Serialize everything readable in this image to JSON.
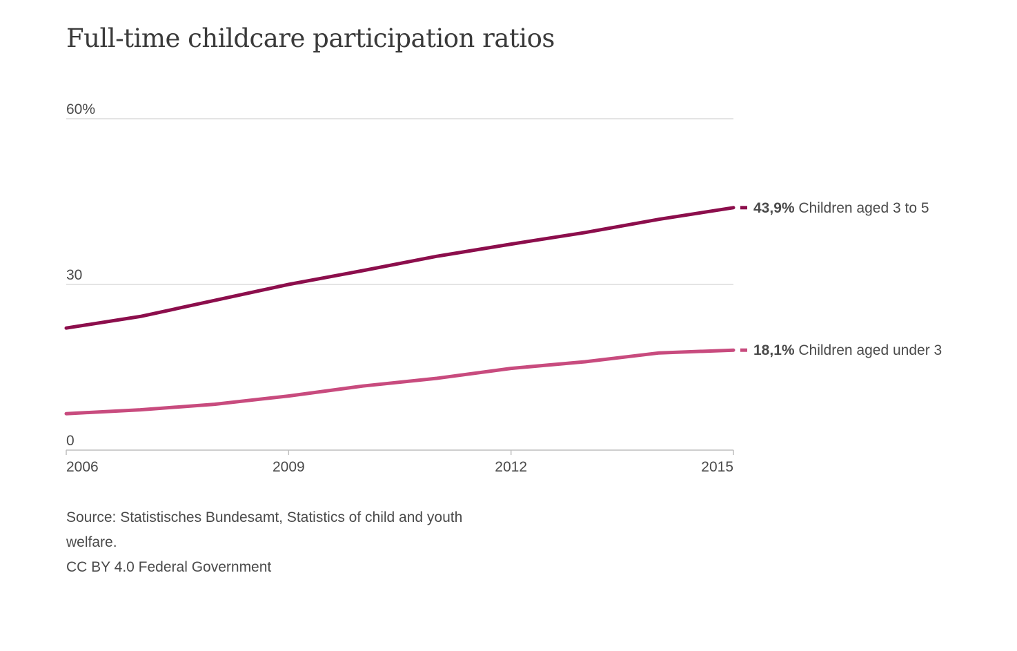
{
  "chart_data": {
    "type": "line",
    "title": "Full-time childcare participation ratios",
    "x": [
      2006,
      2007,
      2008,
      2009,
      2010,
      2011,
      2012,
      2013,
      2014,
      2015
    ],
    "x_ticks": [
      "2006",
      "2009",
      "2012",
      "2015"
    ],
    "y_ticks": [
      "0",
      "30",
      "60%"
    ],
    "y_tick_values": [
      0,
      30,
      60
    ],
    "ylim": [
      0,
      60
    ],
    "xlim": [
      2006,
      2015
    ],
    "grid": true,
    "series": [
      {
        "name": "Children aged 3 to 5",
        "end_value_label": "43,9%",
        "color": "#8c0e4c",
        "values": [
          22.1,
          24.2,
          27.1,
          30.0,
          32.5,
          35.1,
          37.3,
          39.4,
          41.8,
          43.9
        ]
      },
      {
        "name": "Children aged under 3",
        "end_value_label": "18,1%",
        "color": "#c84b7e",
        "values": [
          6.6,
          7.3,
          8.3,
          9.8,
          11.6,
          13.0,
          14.8,
          16.0,
          17.6,
          18.1
        ]
      }
    ],
    "source": {
      "line1": "Source: Statistisches Bundesamt, Statistics of child and youth welfare.",
      "line2": "CC BY 4.0 Federal Government"
    }
  },
  "colors": {
    "gridline": "#d4d4d4",
    "axis": "#bdbdbd",
    "text": "#4a4a4a"
  }
}
